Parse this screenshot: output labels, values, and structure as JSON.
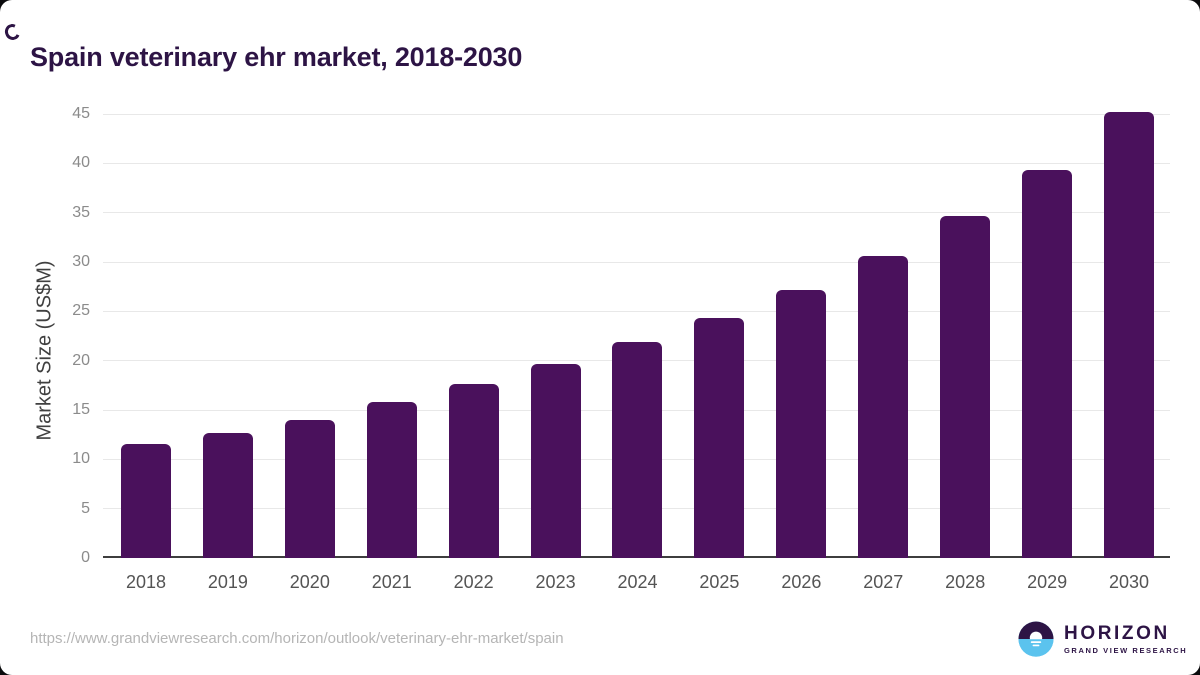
{
  "page": {
    "background_color": "#0b0b0d",
    "card_color": "#ffffff"
  },
  "header": {
    "title": "Spain veterinary ehr market, 2018-2030",
    "title_color": "#2d1445"
  },
  "chart_data": {
    "type": "bar",
    "title": "Spain veterinary ehr market, 2018-2030",
    "categories": [
      "2018",
      "2019",
      "2020",
      "2021",
      "2022",
      "2023",
      "2024",
      "2025",
      "2026",
      "2027",
      "2028",
      "2029",
      "2030"
    ],
    "values": [
      11.6,
      12.7,
      14.0,
      15.8,
      17.6,
      19.7,
      21.9,
      24.3,
      27.2,
      30.6,
      34.7,
      39.3,
      45.2
    ],
    "xlabel": "",
    "ylabel": "Market Size (US$M)",
    "ylim": [
      0,
      45
    ],
    "ytick_step": 5,
    "yticks": [
      0,
      5,
      10,
      15,
      20,
      25,
      30,
      35,
      40,
      45
    ],
    "grid": true,
    "legend": "none",
    "bar_color": "#4a115c",
    "gridline_color": "#e8e8e8"
  },
  "footer": {
    "source_url": "https://www.grandviewresearch.com/horizon/outlook/veterinary-ehr-market/spain",
    "logo": {
      "name": "HORIZON",
      "subtitle": "GRAND VIEW RESEARCH",
      "icon": "horizon-sunrise-icon",
      "purple": "#2d1445",
      "blue": "#5bc3ee"
    }
  }
}
